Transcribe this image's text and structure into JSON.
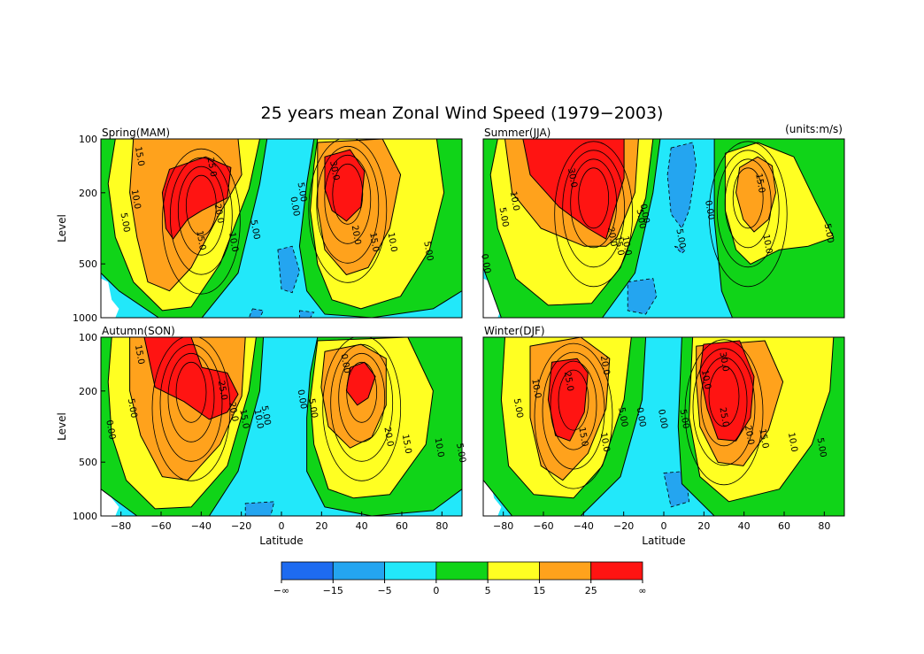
{
  "title": "25 years mean Zonal Wind Speed (1979−2003)",
  "units_label": "(units:m/s)",
  "chart_data": [
    {
      "type": "contour",
      "panel_title": "Spring(MAM)",
      "xlim": [
        -90,
        90
      ],
      "ylim": [
        1000,
        100
      ],
      "yscale": "log",
      "x_ticks": [],
      "y_ticks": [
        "100",
        "200",
        "500",
        "1000"
      ],
      "ylabel": "Level",
      "xlabel": "",
      "jets": [
        {
          "lat": -40,
          "lev": 220,
          "max": 25
        },
        {
          "lat": 33,
          "lev": 190,
          "max": 30
        }
      ],
      "contour_labels": [
        "15.0",
        "10.0",
        "5.00",
        "25.0",
        "20.0",
        "15.0",
        "10.0",
        "5.00",
        "5.00",
        "0.00",
        "30.0",
        "20.0",
        "15.0",
        "10.0",
        "5.00"
      ]
    },
    {
      "type": "contour",
      "panel_title": "Summer(JJA)",
      "xlim": [
        -90,
        90
      ],
      "ylim": [
        1000,
        100
      ],
      "yscale": "log",
      "x_ticks": [],
      "y_ticks": [],
      "ylabel": "",
      "xlabel": "",
      "jets": [
        {
          "lat": -35,
          "lev": 200,
          "max": 30
        },
        {
          "lat": 42,
          "lev": 200,
          "max": 20
        }
      ],
      "contour_labels": [
        "10.0",
        "5.00",
        "0.00",
        "30.0",
        "20.0",
        "15.0",
        "10.0",
        "5.00",
        "0.00",
        "5.00",
        "0.00",
        "15.0",
        "10.0",
        "5.00"
      ]
    },
    {
      "type": "contour",
      "panel_title": "Autumn(SON)",
      "xlim": [
        -90,
        90
      ],
      "ylim": [
        1000,
        100
      ],
      "yscale": "log",
      "x_ticks": [
        "−80",
        "−60",
        "−40",
        "−20",
        "0",
        "20",
        "40",
        "60",
        "80"
      ],
      "y_ticks": [
        "100",
        "200",
        "500",
        "1000"
      ],
      "ylabel": "Level",
      "xlabel": "Latitude",
      "jets": [
        {
          "lat": -45,
          "lev": 190,
          "max": 30
        },
        {
          "lat": 40,
          "lev": 190,
          "max": 25
        }
      ],
      "contour_labels": [
        "15.0",
        "5.00",
        "0.00",
        "25.0",
        "20.0",
        "15.0",
        "10.0",
        "5.00",
        "0.00",
        "5.00",
        "0.00",
        "20.0",
        "15.0",
        "10.0",
        "5.00"
      ]
    },
    {
      "type": "contour",
      "panel_title": "Winter(DJF)",
      "xlim": [
        -90,
        90
      ],
      "ylim": [
        1000,
        100
      ],
      "yscale": "log",
      "x_ticks": [
        "−80",
        "−60",
        "−40",
        "−20",
        "0",
        "20",
        "40",
        "60",
        "80"
      ],
      "y_ticks": [],
      "ylabel": "",
      "xlabel": "Latitude",
      "jets": [
        {
          "lat": -45,
          "lev": 210,
          "max": 25
        },
        {
          "lat": 30,
          "lev": 200,
          "max": 35
        }
      ],
      "contour_labels": [
        "10.0",
        "5.00",
        "25.0",
        "20.0",
        "15.0",
        "10.0",
        "5.00",
        "0.00",
        "0.00",
        "5.00",
        "10.0",
        "30.0",
        "25.0",
        "20.0",
        "15.0",
        "10.0",
        "5.00"
      ]
    }
  ],
  "colorbar": {
    "boundaries": [
      "−∞",
      "−15",
      "−5",
      "0",
      "5",
      "15",
      "25",
      "∞"
    ],
    "colors": [
      "#1e6bf0",
      "#24a5f0",
      "#22e8fa",
      "#10d418",
      "#ffff22",
      "#ffa21c",
      "#ff1412"
    ]
  },
  "colors": {
    "neg_strong": "#1e6bf0",
    "neg_mid": "#24a5f0",
    "neg_weak": "#22e8fa",
    "pos_0_5": "#10d418",
    "pos_5_15": "#ffff22",
    "pos_15_25": "#ffa21c",
    "pos_25_up": "#ff1412"
  }
}
